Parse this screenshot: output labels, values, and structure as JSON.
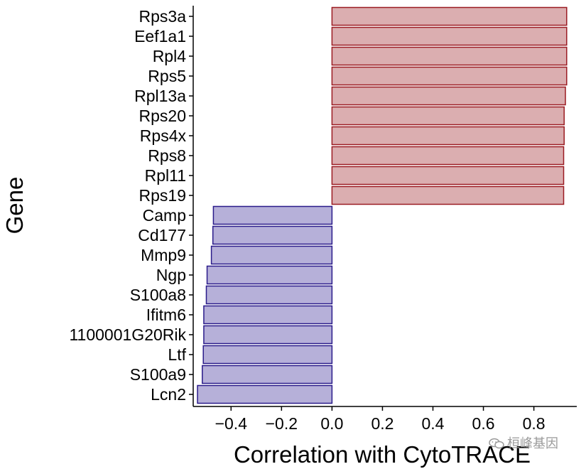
{
  "chart_data": {
    "type": "bar",
    "orientation": "horizontal",
    "title": "",
    "xlabel": "Correlation with CytoTRACE",
    "ylabel": "Gene",
    "xlim": [
      -0.55,
      0.97
    ],
    "xticks": [
      -0.4,
      -0.2,
      0.0,
      0.2,
      0.4,
      0.6,
      0.8
    ],
    "xtick_labels": [
      "−0.4",
      "−0.2",
      "0.0",
      "0.2",
      "0.4",
      "0.6",
      "0.8"
    ],
    "grid": false,
    "legend": "none",
    "categories": [
      "Rps3a",
      "Eef1a1",
      "Rpl4",
      "Rps5",
      "Rpl13a",
      "Rps20",
      "Rps4x",
      "Rps8",
      "Rpl11",
      "Rps19",
      "Camp",
      "Cd177",
      "Mmp9",
      "Ngp",
      "S100a8",
      "Ifitm6",
      "1100001G20Rik",
      "Ltf",
      "S100a9",
      "Lcn2"
    ],
    "values": [
      0.93,
      0.93,
      0.93,
      0.93,
      0.925,
      0.92,
      0.92,
      0.918,
      0.918,
      0.918,
      -0.47,
      -0.472,
      -0.478,
      -0.495,
      -0.498,
      -0.508,
      -0.508,
      -0.51,
      -0.514,
      -0.533
    ],
    "colors": {
      "positive_fill": "#dbaeb0",
      "positive_stroke": "#9b1b22",
      "negative_fill": "#b6b0d9",
      "negative_stroke": "#2a1b8a",
      "axis": "#000000"
    }
  },
  "watermark": {
    "icon": "wechat-icon",
    "text": "桓峰基因"
  }
}
